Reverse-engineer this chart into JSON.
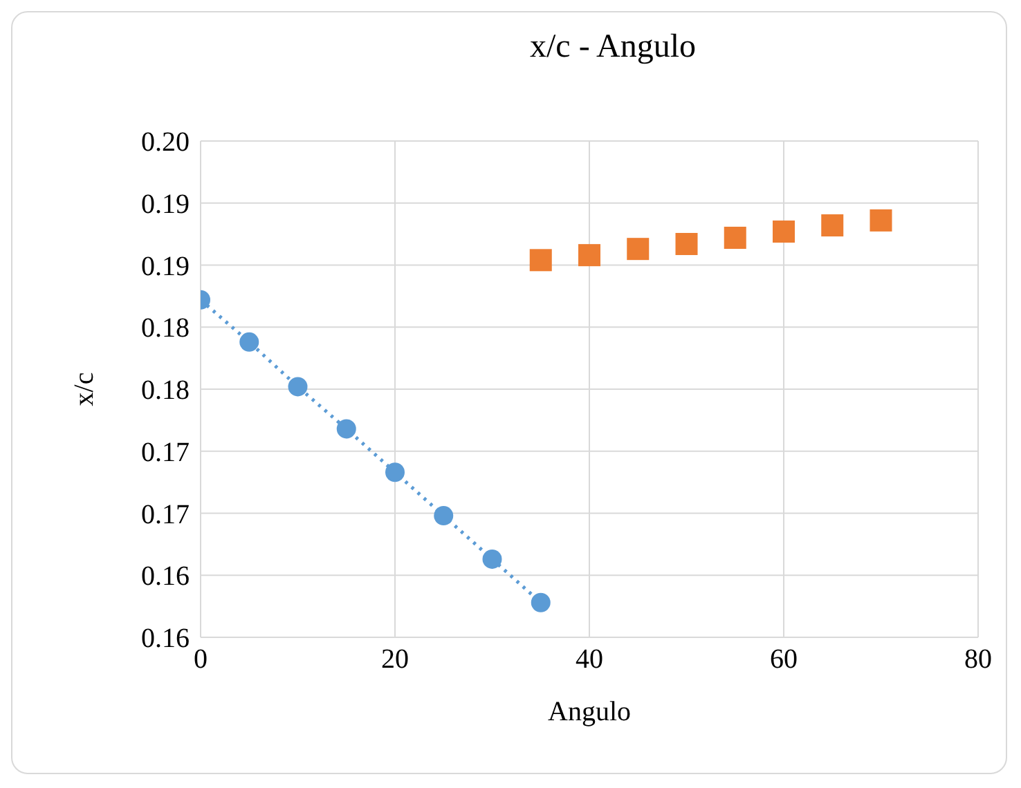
{
  "chart_data": {
    "type": "scatter",
    "title": "x/c - Angulo",
    "xlabel": "Angulo",
    "ylabel": "x/c",
    "xlim": [
      0,
      80
    ],
    "xticks": [
      0,
      20,
      40,
      60,
      80
    ],
    "ylim": [
      0.155,
      0.195
    ],
    "yticks": [
      {
        "value": 0.155,
        "label": "0.16"
      },
      {
        "value": 0.16,
        "label": "0.16"
      },
      {
        "value": 0.165,
        "label": "0.17"
      },
      {
        "value": 0.17,
        "label": "0.17"
      },
      {
        "value": 0.175,
        "label": "0.18"
      },
      {
        "value": 0.18,
        "label": "0.18"
      },
      {
        "value": 0.185,
        "label": "0.19"
      },
      {
        "value": 0.19,
        "label": "0.19"
      },
      {
        "value": 0.195,
        "label": "0.20"
      }
    ],
    "grid": true,
    "legend": false,
    "series": [
      {
        "type": "line",
        "color": "#5b9bd5",
        "marker": "circle",
        "line_style": "dotted",
        "x": [
          0,
          5,
          10,
          15,
          20,
          25,
          30,
          35
        ],
        "values": [
          0.1822,
          0.1788,
          0.1752,
          0.1718,
          0.1683,
          0.1648,
          0.1613,
          0.1578
        ]
      },
      {
        "color": "#ed7d31",
        "marker": "square",
        "x": [
          35,
          40,
          45,
          50,
          55,
          60,
          65,
          70
        ],
        "values": [
          0.1854,
          0.1858,
          0.1863,
          0.1867,
          0.1872,
          0.1877,
          0.1882,
          0.1886
        ]
      }
    ]
  }
}
